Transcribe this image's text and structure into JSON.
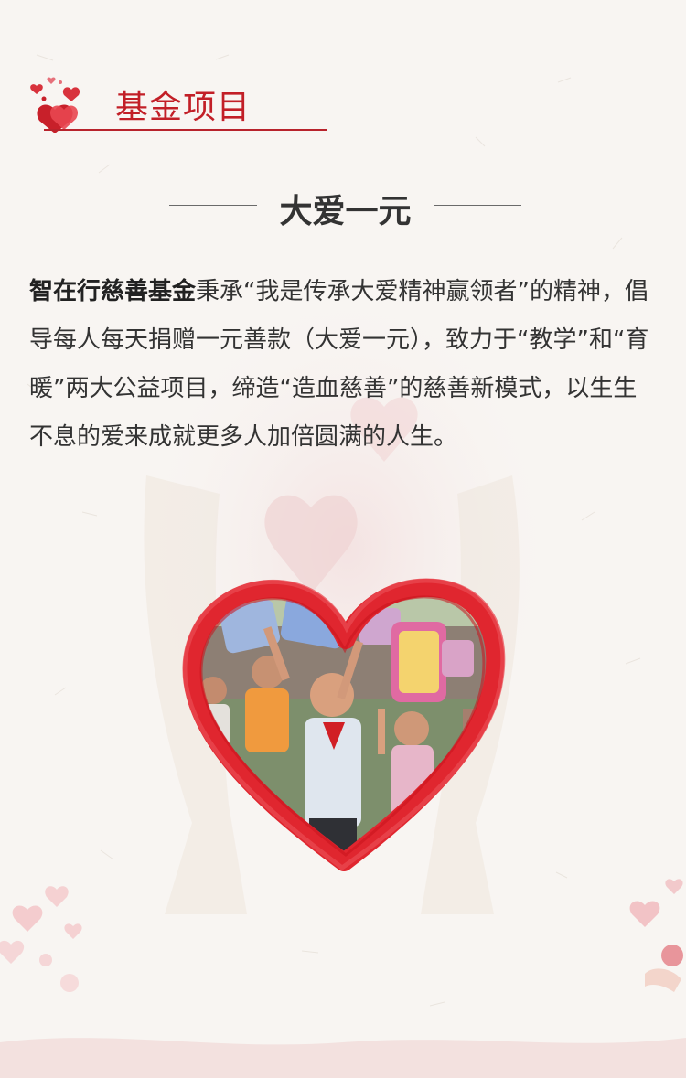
{
  "header": {
    "title": "基金项目"
  },
  "subtitle": "大爱一元",
  "intro": {
    "org_name": "智在行慈善基金",
    "text": "秉承“我是传承大爱精神赢领者”的精神，倡导每人每天捐赠一元善款（大爱一元），致力于“教学”和“育暖”两大公益项目，缔造“造血慈善”的慈善新模式，以生生不息的爱来成就更多人加倍圆满的人生。"
  },
  "colors": {
    "accent": "#c21f27",
    "heart_frame": "#e0262f",
    "background": "#f7f4f1"
  },
  "icons": {
    "header": "hearts-icon"
  }
}
